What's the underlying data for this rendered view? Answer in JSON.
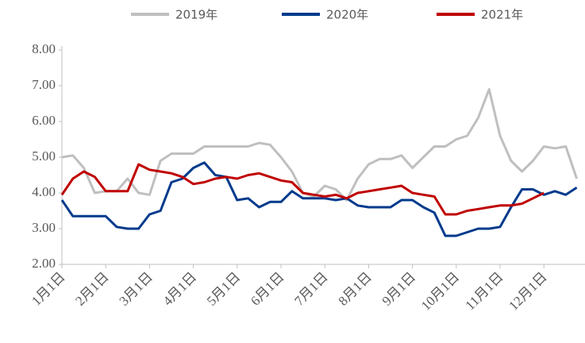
{
  "chart_data": {
    "type": "line",
    "categories": [
      "1月1日",
      null,
      null,
      null,
      "2月1日",
      null,
      null,
      null,
      "3月1日",
      null,
      null,
      null,
      "4月1日",
      null,
      null,
      null,
      "5月1日",
      null,
      null,
      null,
      "6月1日",
      null,
      null,
      null,
      "7月1日",
      null,
      null,
      null,
      "8月1日",
      null,
      null,
      null,
      "9月1日",
      null,
      null,
      null,
      "10月1日",
      null,
      null,
      null,
      "11月1日",
      null,
      null,
      null,
      "12月1日",
      null,
      null,
      null
    ],
    "series": [
      {
        "name": "2019年",
        "color": "#bfbfbf",
        "values": [
          5.0,
          5.05,
          4.7,
          4.0,
          4.05,
          4.05,
          4.4,
          4.0,
          3.95,
          4.9,
          5.1,
          5.1,
          5.1,
          5.3,
          5.3,
          5.3,
          5.3,
          5.3,
          5.4,
          5.35,
          5.0,
          4.6,
          4.0,
          3.9,
          4.2,
          4.1,
          3.8,
          4.4,
          4.8,
          4.95,
          4.95,
          5.05,
          4.7,
          5.0,
          5.3,
          5.3,
          5.5,
          5.6,
          6.1,
          6.9,
          5.6,
          4.9,
          4.6,
          4.9,
          5.3,
          5.25,
          5.3,
          4.4
        ]
      },
      {
        "name": "2020年",
        "color": "#003a8c",
        "values": [
          3.8,
          3.35,
          3.35,
          3.35,
          3.35,
          3.05,
          3.0,
          3.0,
          3.4,
          3.5,
          4.3,
          4.4,
          4.7,
          4.85,
          4.5,
          4.45,
          3.8,
          3.85,
          3.6,
          3.75,
          3.75,
          4.05,
          3.85,
          3.85,
          3.85,
          3.8,
          3.85,
          3.65,
          3.6,
          3.6,
          3.6,
          3.8,
          3.8,
          3.6,
          3.45,
          2.8,
          2.8,
          2.9,
          3.0,
          3.0,
          3.05,
          3.6,
          4.1,
          4.1,
          3.95,
          4.05,
          3.95,
          4.15
        ]
      },
      {
        "name": "2021年",
        "color": "#c00000",
        "values": [
          3.95,
          4.4,
          4.6,
          4.45,
          4.05,
          4.05,
          4.05,
          4.8,
          4.65,
          4.6,
          4.55,
          4.45,
          4.25,
          4.3,
          4.4,
          4.45,
          4.4,
          4.5,
          4.55,
          4.45,
          4.35,
          4.3,
          4.0,
          3.95,
          3.9,
          3.95,
          3.85,
          4.0,
          4.05,
          4.1,
          4.15,
          4.2,
          4.0,
          3.95,
          3.9,
          3.4,
          3.4,
          3.5,
          3.55,
          3.6,
          3.65,
          3.65,
          3.7,
          3.85,
          4.0,
          null,
          null,
          null
        ]
      }
    ],
    "ylim": [
      2,
      8
    ],
    "yticks": [
      {
        "value": 2,
        "label": "2.00"
      },
      {
        "value": 3,
        "label": "3.00"
      },
      {
        "value": 4,
        "label": "4.00"
      },
      {
        "value": 5,
        "label": "5.00"
      },
      {
        "value": 6,
        "label": "6.00"
      },
      {
        "value": 7,
        "label": "7.00"
      },
      {
        "value": 8,
        "label": "8.00"
      }
    ],
    "legend": "top",
    "grid": false
  }
}
